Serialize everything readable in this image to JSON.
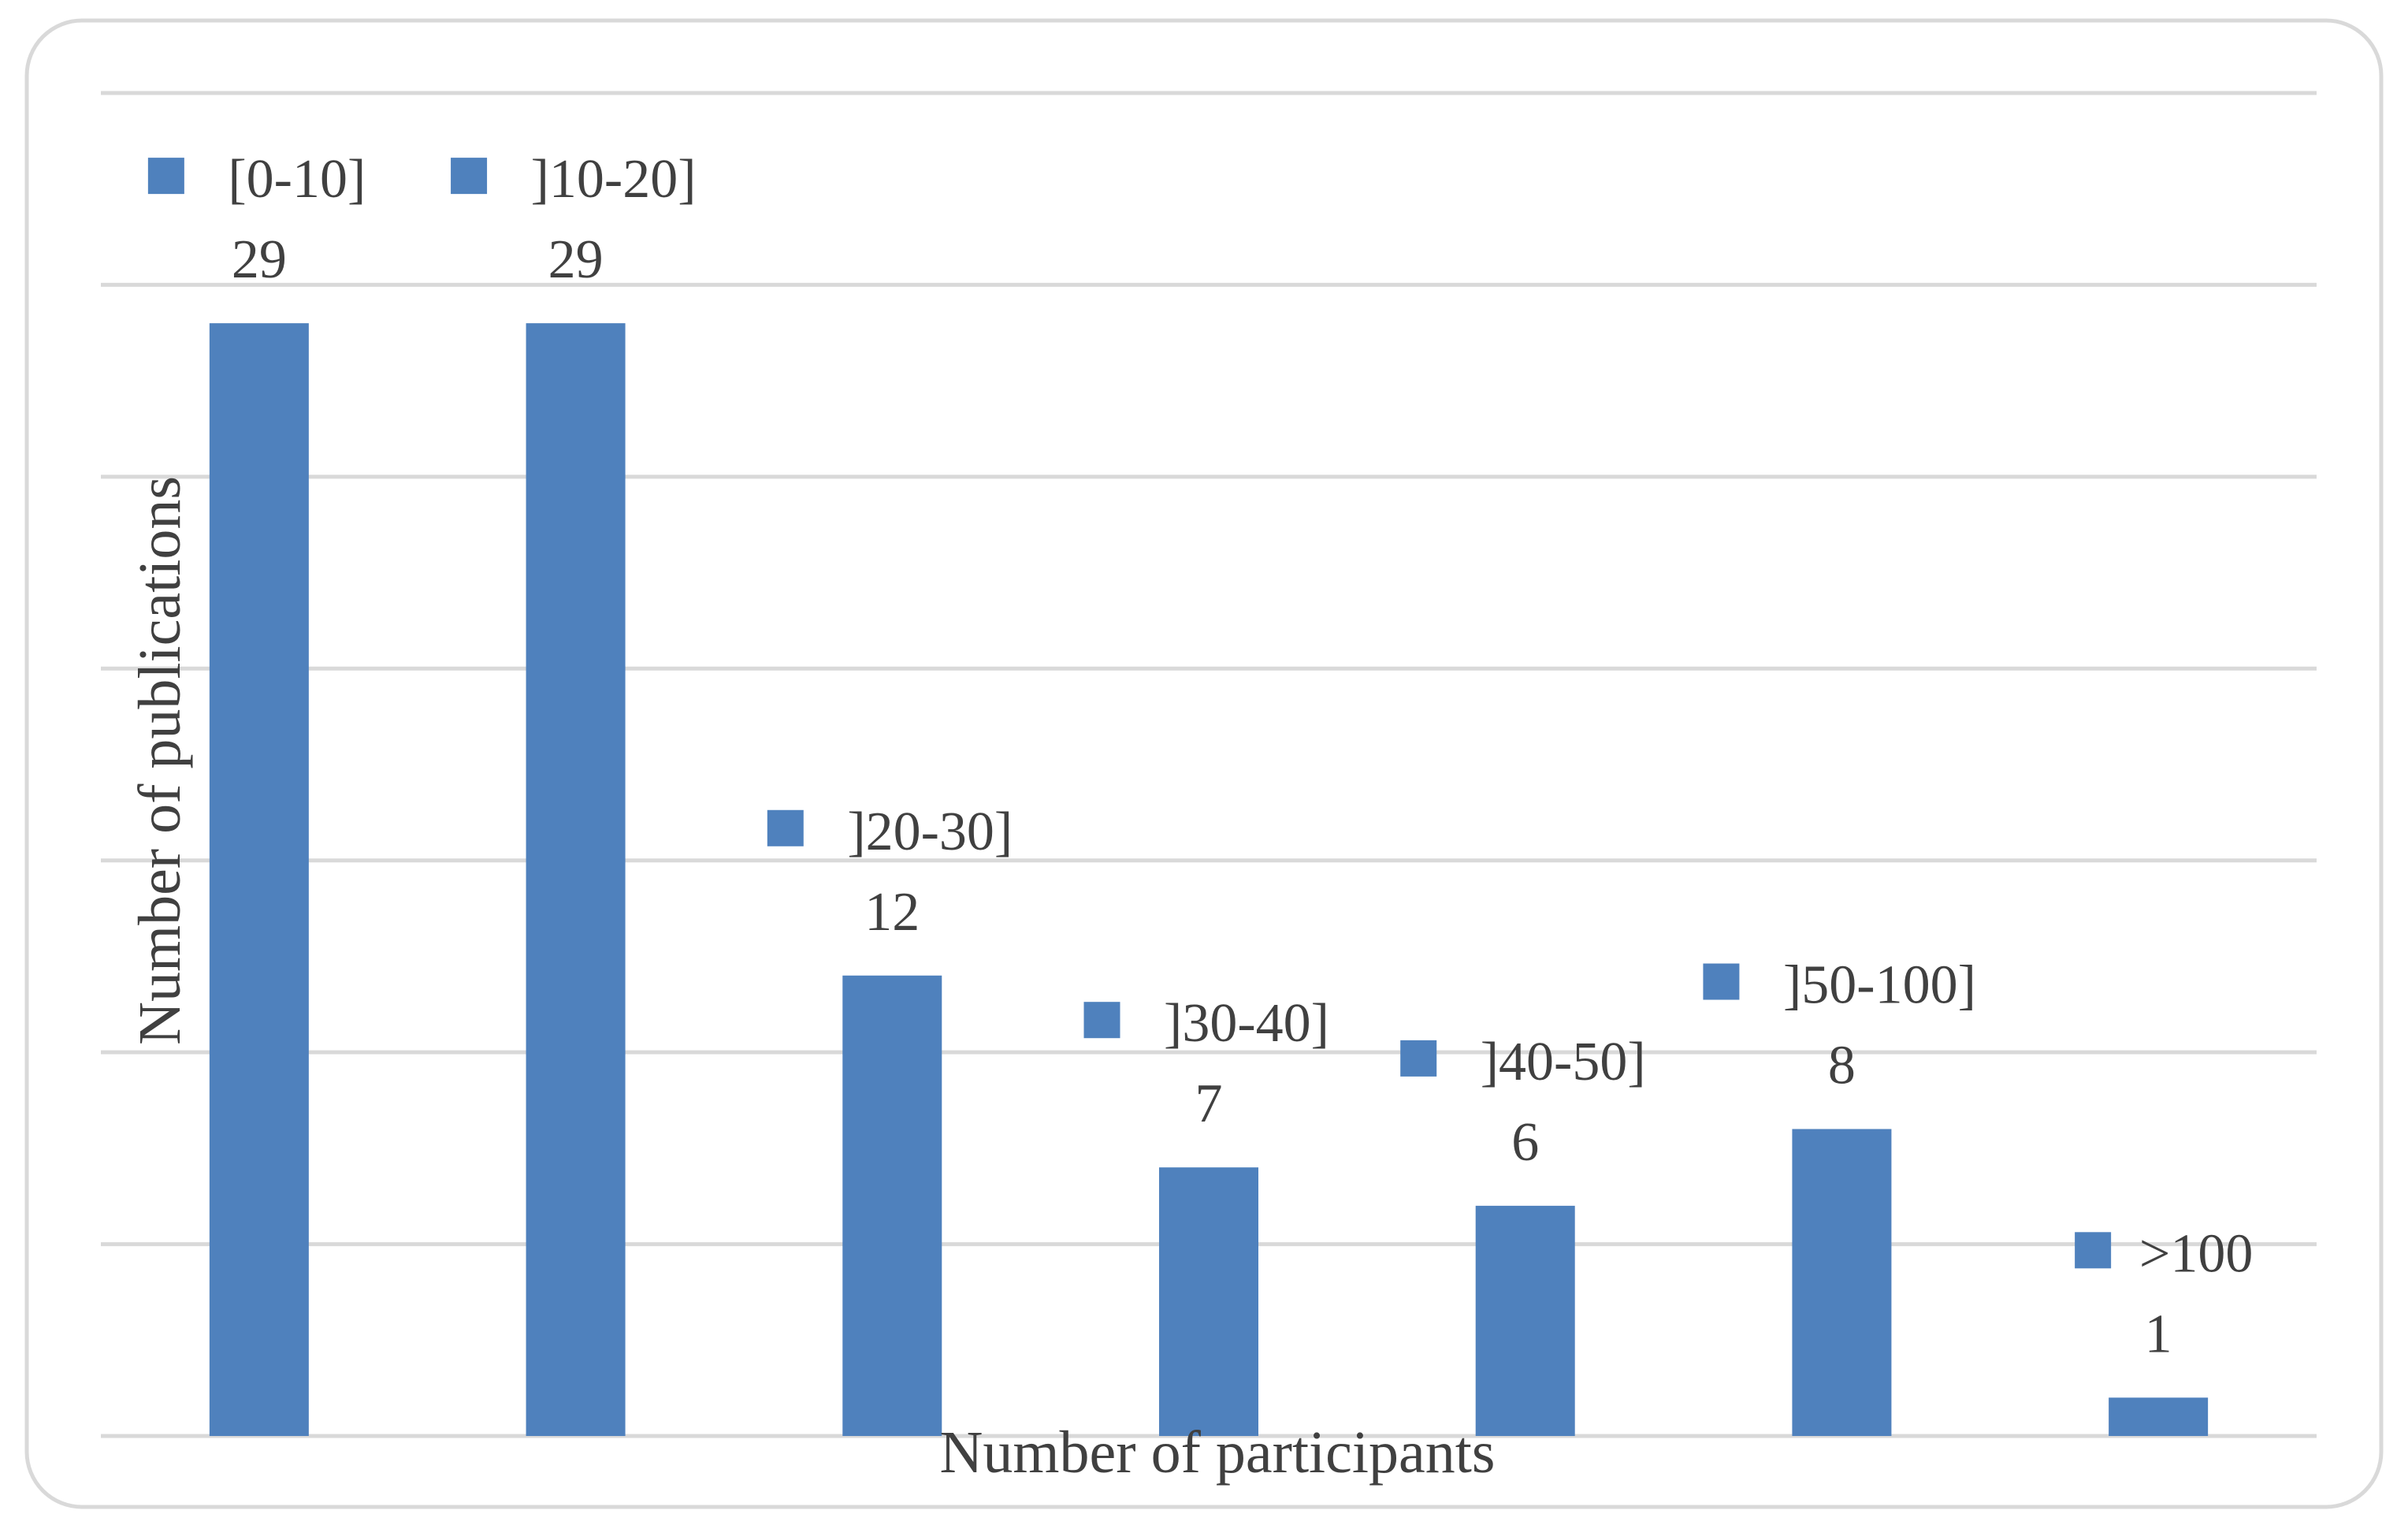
{
  "chart_data": {
    "type": "bar",
    "title": "",
    "xlabel": "Number of participants",
    "ylabel": "Number of publications",
    "categories": [
      "[0-10]",
      "]10-20]",
      "]20-30]",
      "]30-40]",
      "]40-50]",
      "]50-100]",
      ">100"
    ],
    "values": [
      29,
      29,
      12,
      7,
      6,
      8,
      1
    ],
    "ylim": [
      0,
      35
    ],
    "grid": true,
    "legend": "per-bar markers above each bar",
    "colors": {
      "bar": "#4f81bd",
      "grid": "#d9d9d9",
      "text": "#404040",
      "frame": "#d9d9d9"
    }
  }
}
